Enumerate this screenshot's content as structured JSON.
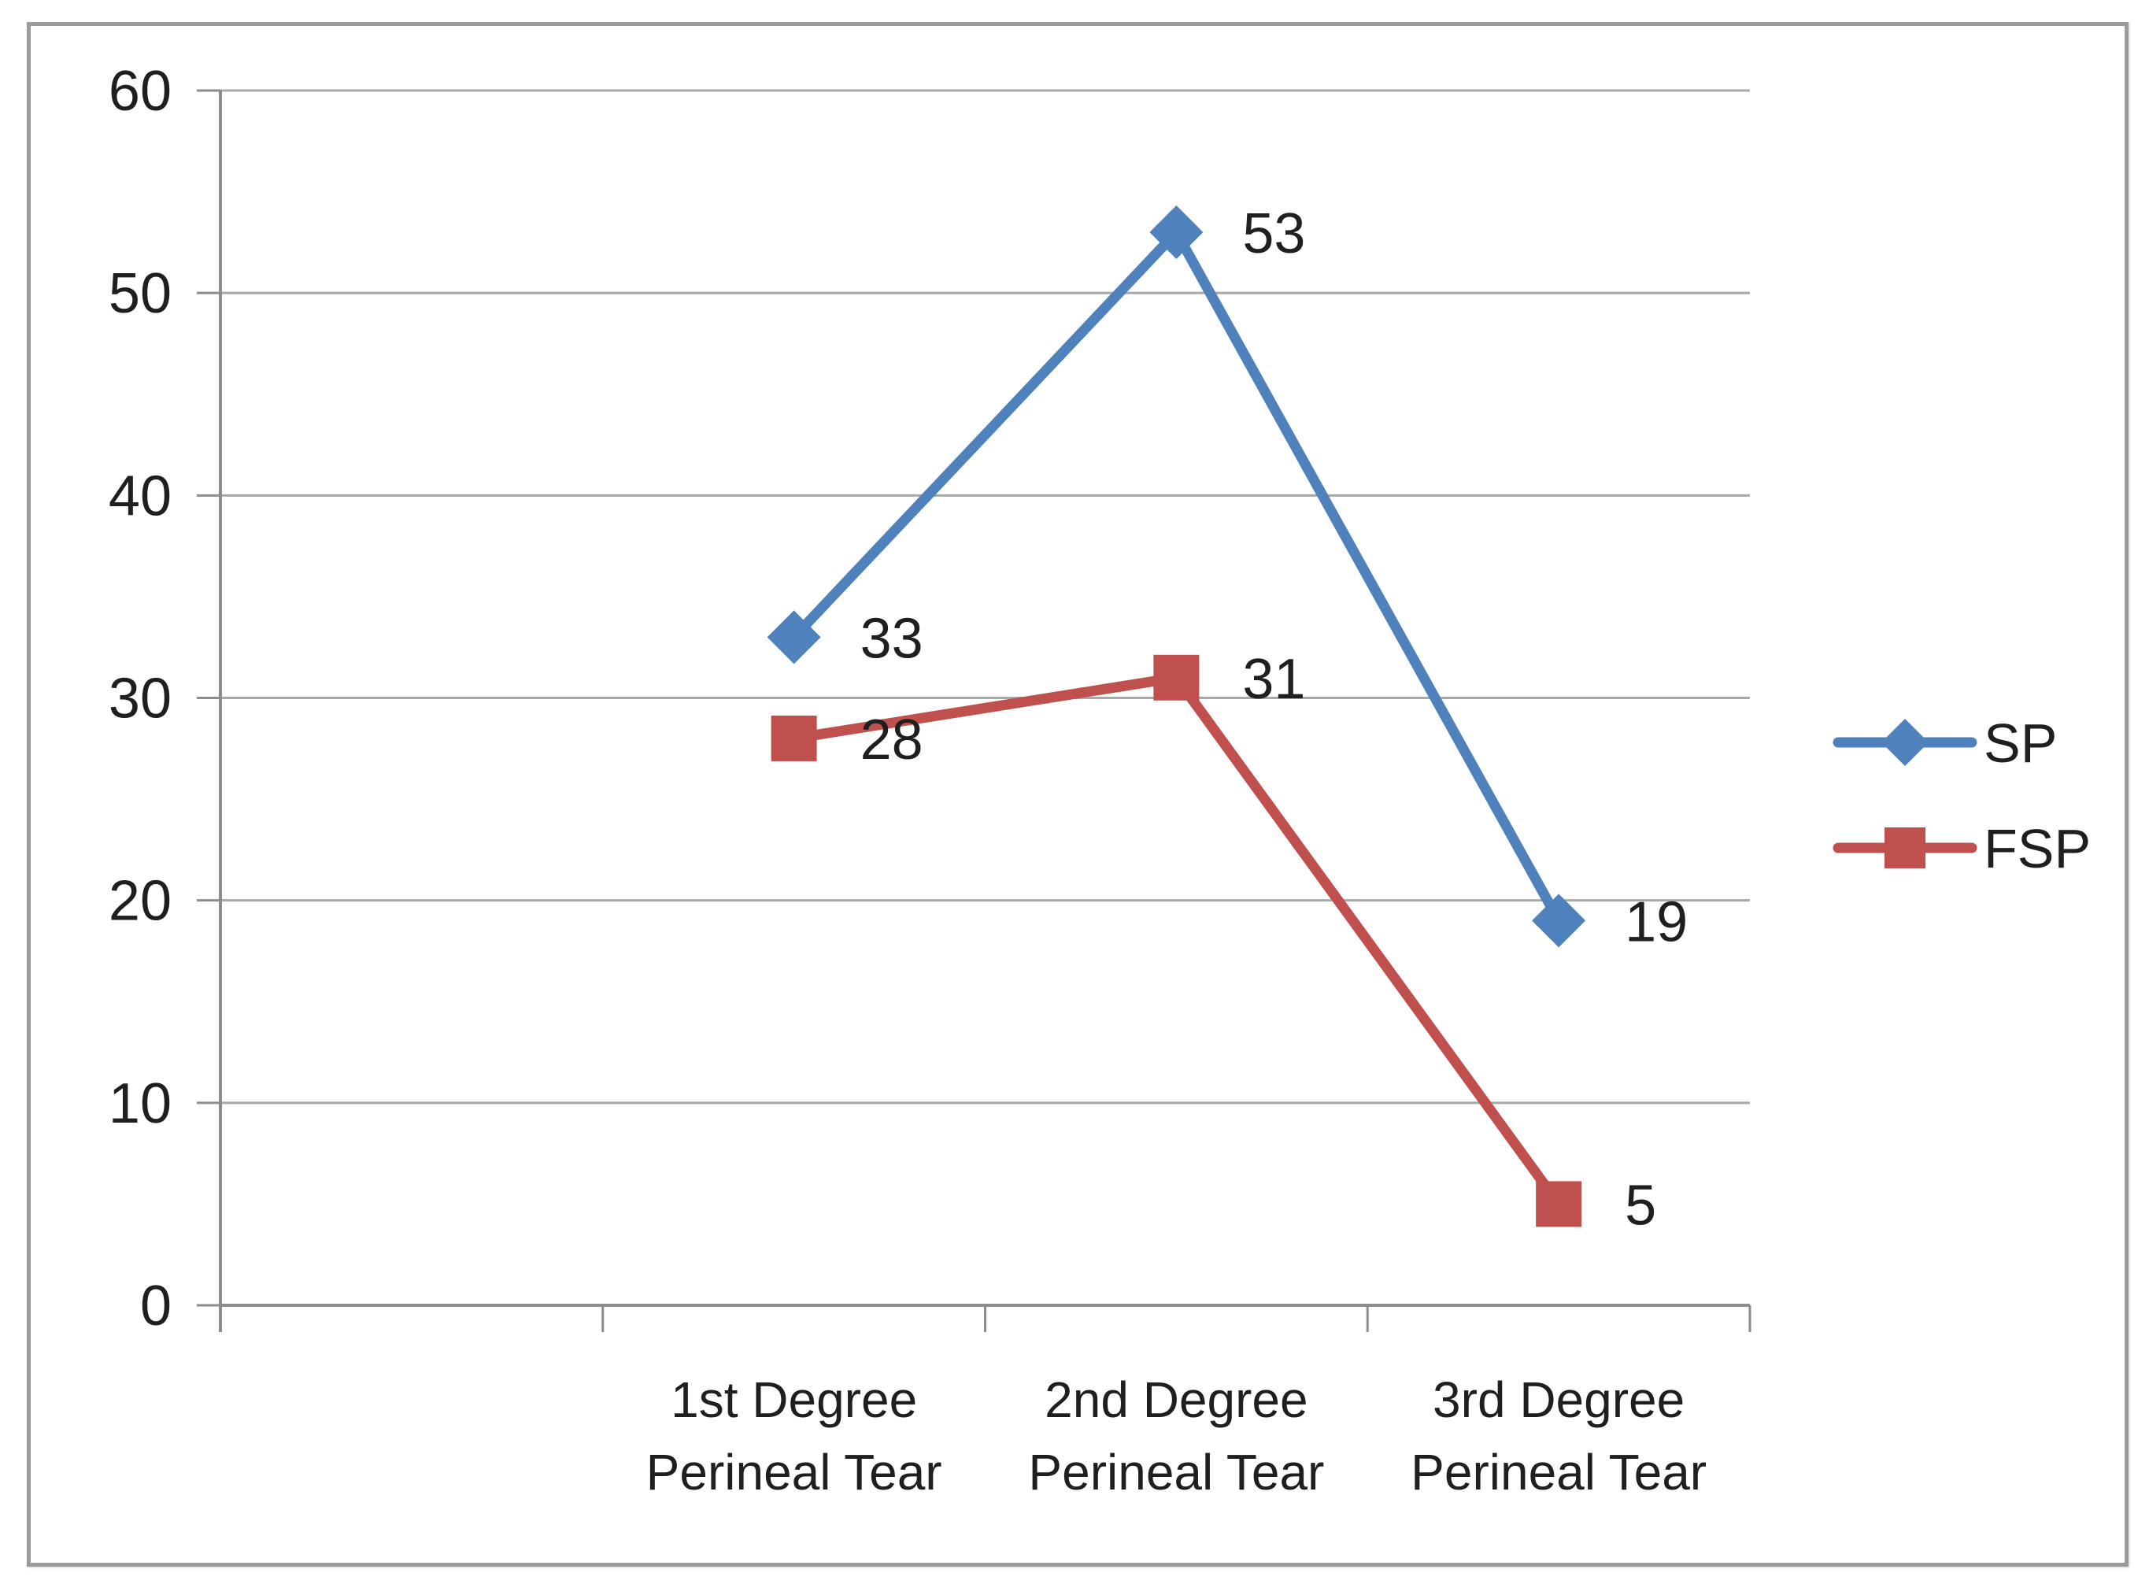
{
  "chart_data": {
    "type": "line",
    "title": "",
    "xlabel": "",
    "ylabel": "",
    "categories": [
      "1st Degree Perineal Tear",
      "2nd Degree Perineal Tear",
      "3rd Degree Perineal Tear"
    ],
    "category_lines": [
      [
        "1st Degree",
        "Perineal Tear"
      ],
      [
        "2nd Degree",
        "Perineal Tear"
      ],
      [
        "3rd Degree",
        "Perineal Tear"
      ]
    ],
    "series": [
      {
        "name": "SP",
        "values": [
          33,
          53,
          19
        ],
        "color": "#4F81BD",
        "marker": "diamond"
      },
      {
        "name": "FSP",
        "values": [
          28,
          31,
          5
        ],
        "color": "#C0504D",
        "marker": "square"
      }
    ],
    "data_labels": {
      "SP": [
        "33",
        "53",
        "19"
      ],
      "FSP": [
        "28",
        "31",
        "5"
      ]
    },
    "ylim": [
      0,
      60
    ],
    "yticks": [
      "0",
      "10",
      "20",
      "30",
      "40",
      "50",
      "60"
    ],
    "grid": "on",
    "legend_position": "right",
    "legend_entries": [
      "SP",
      "FSP"
    ]
  },
  "style_colors": {
    "gridline": "#a8a8a8",
    "axis": "#8c8c8c",
    "tick": "#8c8c8c",
    "text": "#1f1f1f",
    "frame_border": "#9b9b9b",
    "background": "#ffffff"
  }
}
